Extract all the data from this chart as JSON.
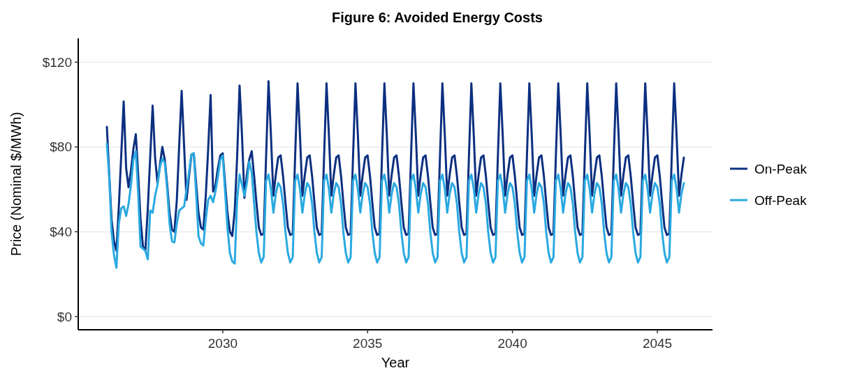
{
  "chart_data": {
    "type": "line",
    "title": "Figure 6: Avoided Energy Costs",
    "xlabel": "Year",
    "ylabel": "Price (Nominal $/MWh)",
    "x": [
      "2026-01",
      "2026-02",
      "2026-03",
      "2026-04",
      "2026-05",
      "2026-06",
      "2026-07",
      "2026-08",
      "2026-09",
      "2026-10",
      "2026-11",
      "2026-12",
      "2027-01",
      "2027-02",
      "2027-03",
      "2027-04",
      "2027-05",
      "2027-06",
      "2027-07",
      "2027-08",
      "2027-09",
      "2027-10",
      "2027-11",
      "2027-12",
      "2028-01",
      "2028-02",
      "2028-03",
      "2028-04",
      "2028-05",
      "2028-06",
      "2028-07",
      "2028-08",
      "2028-09",
      "2028-10",
      "2028-11",
      "2028-12",
      "2029-01",
      "2029-02",
      "2029-03",
      "2029-04",
      "2029-05",
      "2029-06",
      "2029-07",
      "2029-08",
      "2029-09",
      "2029-10",
      "2029-11",
      "2029-12",
      "2030-01",
      "2030-02",
      "2030-03",
      "2030-04",
      "2030-05",
      "2030-06",
      "2030-07",
      "2030-08",
      "2030-09",
      "2030-10",
      "2030-11",
      "2030-12",
      "2031-01",
      "2031-02",
      "2031-03",
      "2031-04",
      "2031-05",
      "2031-06",
      "2031-07",
      "2031-08",
      "2031-09",
      "2031-10",
      "2031-11",
      "2031-12",
      "2032-01",
      "2032-02",
      "2032-03",
      "2032-04",
      "2032-05",
      "2032-06",
      "2032-07",
      "2032-08",
      "2032-09",
      "2032-10",
      "2032-11",
      "2032-12",
      "2033-01",
      "2033-02",
      "2033-03",
      "2033-04",
      "2033-05",
      "2033-06",
      "2033-07",
      "2033-08",
      "2033-09",
      "2033-10",
      "2033-11",
      "2033-12",
      "2034-01",
      "2034-02",
      "2034-03",
      "2034-04",
      "2034-05",
      "2034-06",
      "2034-07",
      "2034-08",
      "2034-09",
      "2034-10",
      "2034-11",
      "2034-12",
      "2035-01",
      "2035-02",
      "2035-03",
      "2035-04",
      "2035-05",
      "2035-06",
      "2035-07",
      "2035-08",
      "2035-09",
      "2035-10",
      "2035-11",
      "2035-12",
      "2036-01",
      "2036-02",
      "2036-03",
      "2036-04",
      "2036-05",
      "2036-06",
      "2036-07",
      "2036-08",
      "2036-09",
      "2036-10",
      "2036-11",
      "2036-12",
      "2037-01",
      "2037-02",
      "2037-03",
      "2037-04",
      "2037-05",
      "2037-06",
      "2037-07",
      "2037-08",
      "2037-09",
      "2037-10",
      "2037-11",
      "2037-12",
      "2038-01",
      "2038-02",
      "2038-03",
      "2038-04",
      "2038-05",
      "2038-06",
      "2038-07",
      "2038-08",
      "2038-09",
      "2038-10",
      "2038-11",
      "2038-12",
      "2039-01",
      "2039-02",
      "2039-03",
      "2039-04",
      "2039-05",
      "2039-06",
      "2039-07",
      "2039-08",
      "2039-09",
      "2039-10",
      "2039-11",
      "2039-12",
      "2040-01",
      "2040-02",
      "2040-03",
      "2040-04",
      "2040-05",
      "2040-06",
      "2040-07",
      "2040-08",
      "2040-09",
      "2040-10",
      "2040-11",
      "2040-12",
      "2041-01",
      "2041-02",
      "2041-03",
      "2041-04",
      "2041-05",
      "2041-06",
      "2041-07",
      "2041-08",
      "2041-09",
      "2041-10",
      "2041-11",
      "2041-12",
      "2042-01",
      "2042-02",
      "2042-03",
      "2042-04",
      "2042-05",
      "2042-06",
      "2042-07",
      "2042-08",
      "2042-09",
      "2042-10",
      "2042-11",
      "2042-12",
      "2043-01",
      "2043-02",
      "2043-03",
      "2043-04",
      "2043-05",
      "2043-06",
      "2043-07",
      "2043-08",
      "2043-09",
      "2043-10",
      "2043-11",
      "2043-12",
      "2044-01",
      "2044-02",
      "2044-03",
      "2044-04",
      "2044-05",
      "2044-06",
      "2044-07",
      "2044-08",
      "2044-09",
      "2044-10",
      "2044-11",
      "2044-12",
      "2045-01",
      "2045-02",
      "2045-03",
      "2045-04",
      "2045-05",
      "2045-06",
      "2045-07",
      "2045-08",
      "2045-09",
      "2045-10",
      "2045-11",
      "2045-12"
    ],
    "series": [
      {
        "name": "On-Peak",
        "color": "#0c2f80",
        "values": [
          89.5,
          66,
          46,
          35.5,
          31,
          52,
          76,
          101.5,
          70,
          61,
          69,
          79,
          86,
          66,
          46,
          33,
          31,
          51,
          75,
          99.5,
          75,
          63,
          71.5,
          80,
          74,
          62,
          49,
          41,
          40,
          55,
          81,
          106.5,
          80,
          55,
          66,
          76,
          77,
          62,
          49,
          42,
          41,
          57,
          79,
          104.5,
          59,
          62,
          70,
          76,
          77,
          62,
          49,
          40,
          38,
          50,
          75,
          109,
          85,
          56,
          67,
          74,
          78,
          66,
          54,
          42,
          38.5,
          39,
          75,
          111,
          85,
          57,
          67,
          75,
          76,
          66,
          54,
          42,
          38.5,
          39,
          75,
          110,
          85,
          57,
          67,
          75,
          76,
          66,
          54,
          42,
          38.5,
          39,
          75,
          110,
          85,
          57,
          67,
          75,
          76,
          66,
          54,
          42,
          38.5,
          39,
          75,
          110,
          85,
          57,
          67,
          75,
          76,
          66,
          54,
          42,
          38.5,
          39,
          75,
          110,
          85,
          57,
          67,
          75,
          76,
          66,
          54,
          42,
          38.5,
          39,
          75,
          110,
          85,
          57,
          67,
          75,
          76,
          66,
          54,
          42,
          38.5,
          39,
          75,
          110,
          85,
          57,
          67,
          75,
          76,
          66,
          54,
          42,
          38.5,
          39,
          75,
          110,
          85,
          57,
          67,
          75,
          76,
          66,
          54,
          42,
          38.5,
          39,
          75,
          110,
          85,
          57,
          67,
          75,
          76,
          66,
          54,
          42,
          38.5,
          39,
          75,
          110,
          85,
          57,
          67,
          75,
          76,
          66,
          54,
          42,
          38.5,
          39,
          75,
          110,
          85,
          57,
          67,
          75,
          76,
          66,
          54,
          42,
          38.5,
          39,
          75,
          110,
          85,
          57,
          67,
          75,
          76,
          66,
          54,
          42,
          38.5,
          39,
          75,
          110,
          85,
          57,
          67,
          75,
          76,
          66,
          54,
          42,
          38.5,
          39,
          75,
          110,
          85,
          57,
          67,
          75,
          76,
          66,
          54,
          42,
          38.5,
          39,
          75,
          110,
          85,
          57,
          67,
          75
        ]
      },
      {
        "name": "Off-Peak",
        "color": "#2aa9e1",
        "values": [
          81.5,
          65,
          40,
          29,
          23,
          44,
          51,
          52,
          47.5,
          53,
          62,
          74,
          78,
          57,
          33,
          32,
          31,
          27,
          50,
          49,
          57,
          62,
          70.5,
          74.5,
          72.5,
          59.5,
          44,
          35.5,
          35,
          44,
          50,
          51,
          52,
          60,
          68,
          76.5,
          77,
          57,
          38,
          34.5,
          33.5,
          46,
          55,
          57,
          54,
          59,
          66,
          74,
          76,
          58,
          42,
          30,
          26,
          25,
          55,
          67,
          62,
          57,
          63,
          73,
          68,
          53,
          40,
          30,
          25.5,
          28,
          64,
          67,
          60,
          49,
          58,
          63,
          61,
          53,
          40,
          30,
          25.5,
          28,
          64,
          67,
          60,
          49,
          58,
          63,
          61,
          53,
          40,
          30,
          25.5,
          28,
          64,
          67,
          60,
          49,
          58,
          63,
          61,
          53,
          40,
          30,
          25.5,
          28,
          64,
          67,
          60,
          49,
          58,
          63,
          61,
          53,
          40,
          30,
          25.5,
          28,
          64,
          67,
          60,
          49,
          58,
          63,
          61,
          53,
          40,
          30,
          25.5,
          28,
          64,
          67,
          60,
          49,
          58,
          63,
          61,
          53,
          40,
          30,
          25.5,
          28,
          64,
          67,
          60,
          49,
          58,
          63,
          61,
          53,
          40,
          30,
          25.5,
          28,
          64,
          67,
          60,
          49,
          58,
          63,
          61,
          53,
          40,
          30,
          25.5,
          28,
          64,
          67,
          60,
          49,
          58,
          63,
          61,
          53,
          40,
          30,
          25.5,
          28,
          64,
          67,
          60,
          49,
          58,
          63,
          61,
          53,
          40,
          30,
          25.5,
          28,
          64,
          67,
          60,
          49,
          58,
          63,
          61,
          53,
          40,
          30,
          25.5,
          28,
          64,
          67,
          60,
          49,
          58,
          63,
          61,
          53,
          40,
          30,
          25.5,
          28,
          64,
          67,
          60,
          49,
          58,
          63,
          61,
          53,
          40,
          30,
          25.5,
          28,
          64,
          67,
          60,
          49,
          58,
          63,
          61,
          53,
          40,
          30,
          25.5,
          28,
          64,
          67,
          60,
          49,
          58,
          63
        ]
      }
    ],
    "xlim": [
      "2025-01-05",
      "2046-11-27"
    ],
    "xticks": [
      "2030",
      "2035",
      "2040",
      "2045"
    ],
    "ylim": [
      -6.25,
      131.25
    ],
    "yticks": [
      {
        "value": 0,
        "label": "$0"
      },
      {
        "value": 40,
        "label": "$40"
      },
      {
        "value": 80,
        "label": "$80"
      },
      {
        "value": 120,
        "label": "$120"
      }
    ],
    "grid": "y",
    "legend": "right",
    "line_style": "solid"
  }
}
